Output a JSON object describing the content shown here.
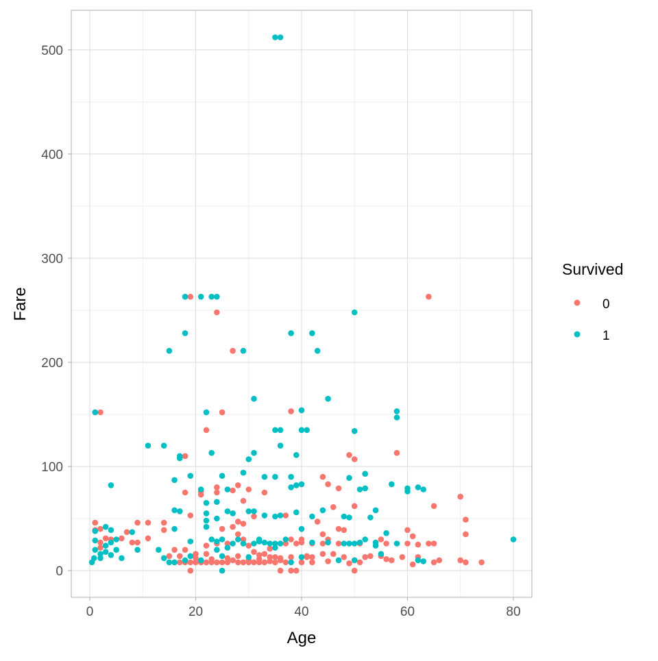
{
  "chart_data": {
    "type": "scatter",
    "title": "",
    "xlabel": "Age",
    "ylabel": "Fare",
    "xlim": [
      -3.5,
      83.5
    ],
    "ylim": [
      -25.6,
      538.0
    ],
    "xticks": [
      0,
      20,
      40,
      60,
      80
    ],
    "yticks": [
      0,
      100,
      200,
      300,
      400,
      500
    ],
    "grid": true,
    "legend": {
      "title": "Survived",
      "placement": "right",
      "entries": [
        "0",
        "1"
      ]
    },
    "colors": {
      "0": "#F8766D",
      "1": "#00BFC4"
    },
    "series": [
      {
        "name": "0",
        "color": "#F8766D",
        "points": [
          [
            19,
            263
          ],
          [
            64,
            263
          ],
          [
            24,
            248
          ],
          [
            27,
            211
          ],
          [
            2,
            152
          ],
          [
            25,
            152
          ],
          [
            38,
            153
          ],
          [
            22,
            135
          ],
          [
            18,
            110
          ],
          [
            58,
            113
          ],
          [
            49,
            111
          ],
          [
            50,
            107
          ],
          [
            44,
            90
          ],
          [
            45,
            83
          ],
          [
            47,
            79
          ],
          [
            18,
            75
          ],
          [
            24,
            75
          ],
          [
            24,
            80
          ],
          [
            28,
            82
          ],
          [
            21,
            76
          ],
          [
            27,
            77
          ],
          [
            30,
            78
          ],
          [
            29,
            67
          ],
          [
            50,
            62
          ],
          [
            65,
            62
          ],
          [
            70,
            71
          ],
          [
            71,
            49
          ],
          [
            71,
            35
          ],
          [
            70,
            10
          ],
          [
            71,
            8
          ],
          [
            74,
            8
          ],
          [
            66,
            10
          ],
          [
            65,
            8
          ],
          [
            61,
            6
          ],
          [
            62,
            13
          ],
          [
            60,
            39
          ],
          [
            61,
            33
          ],
          [
            59,
            13
          ],
          [
            57,
            10
          ],
          [
            56,
            11
          ],
          [
            55,
            30
          ],
          [
            54,
            27
          ],
          [
            53,
            14
          ],
          [
            50,
            10
          ],
          [
            50,
            0
          ],
          [
            48,
            39
          ],
          [
            47,
            26
          ],
          [
            46,
            61
          ],
          [
            45,
            30
          ],
          [
            44,
            26
          ],
          [
            43,
            47
          ],
          [
            42,
            8
          ],
          [
            41,
            13
          ],
          [
            40,
            27
          ],
          [
            40,
            8
          ],
          [
            39,
            0
          ],
          [
            38,
            0
          ],
          [
            37,
            8
          ],
          [
            36,
            0
          ],
          [
            35,
            8
          ],
          [
            34,
            13
          ],
          [
            33,
            8
          ],
          [
            32,
            8
          ],
          [
            31,
            8
          ],
          [
            30,
            8
          ],
          [
            29,
            8
          ],
          [
            28,
            8
          ],
          [
            27,
            10
          ],
          [
            26,
            8
          ],
          [
            25,
            8
          ],
          [
            24,
            8
          ],
          [
            23,
            8
          ],
          [
            22,
            8
          ],
          [
            21,
            8
          ],
          [
            20,
            8
          ],
          [
            19,
            0
          ],
          [
            19,
            8
          ],
          [
            18,
            8
          ],
          [
            17,
            8
          ],
          [
            16,
            8
          ],
          [
            15,
            14
          ],
          [
            14,
            39
          ],
          [
            14,
            46
          ],
          [
            11,
            46
          ],
          [
            11,
            31
          ],
          [
            9,
            46
          ],
          [
            9,
            27
          ],
          [
            8,
            27
          ],
          [
            7,
            37
          ],
          [
            6,
            31
          ],
          [
            4,
            30
          ],
          [
            3,
            31
          ],
          [
            2,
            27
          ],
          [
            2,
            22
          ],
          [
            1,
            46
          ],
          [
            1,
            39
          ],
          [
            2,
            40
          ],
          [
            19,
            53
          ],
          [
            21,
            73
          ],
          [
            16,
            20
          ],
          [
            20,
            16
          ],
          [
            22,
            16
          ],
          [
            24,
            26
          ],
          [
            26,
            26
          ],
          [
            28,
            35
          ],
          [
            28,
            47
          ],
          [
            29,
            30
          ],
          [
            30,
            24
          ],
          [
            31,
            18
          ],
          [
            32,
            15
          ],
          [
            33,
            16
          ],
          [
            34,
            21
          ],
          [
            35,
            13
          ],
          [
            36,
            10
          ],
          [
            37,
            26
          ],
          [
            38,
            30
          ],
          [
            39,
            26
          ],
          [
            40,
            30
          ],
          [
            41,
            14
          ],
          [
            42,
            26
          ],
          [
            44,
            16
          ],
          [
            46,
            16
          ],
          [
            47,
            40
          ],
          [
            49,
            7
          ],
          [
            51,
            26
          ],
          [
            52,
            13
          ],
          [
            55,
            14
          ],
          [
            56,
            26
          ],
          [
            60,
            26
          ],
          [
            62,
            25
          ],
          [
            64,
            26
          ],
          [
            65,
            26
          ],
          [
            25,
            40
          ],
          [
            27,
            42
          ],
          [
            29,
            45
          ],
          [
            31,
            52
          ],
          [
            33,
            75
          ],
          [
            37,
            53
          ],
          [
            44,
            35
          ],
          [
            23,
            11
          ],
          [
            26,
            12
          ],
          [
            28,
            14
          ],
          [
            30,
            10
          ],
          [
            32,
            11
          ],
          [
            34,
            9
          ],
          [
            36,
            12
          ],
          [
            38,
            13
          ],
          [
            42,
            13
          ],
          [
            45,
            9
          ],
          [
            48,
            13
          ],
          [
            51,
            8
          ],
          [
            20,
            12
          ],
          [
            22,
            24
          ],
          [
            18,
            20
          ],
          [
            17,
            14
          ]
        ]
      },
      {
        "name": "1",
        "color": "#00BFC4",
        "points": [
          [
            35,
            512
          ],
          [
            36,
            512
          ],
          [
            18,
            263
          ],
          [
            21,
            263
          ],
          [
            23,
            263
          ],
          [
            24,
            263
          ],
          [
            18,
            228
          ],
          [
            38,
            228
          ],
          [
            42,
            228
          ],
          [
            15,
            211
          ],
          [
            29,
            211
          ],
          [
            43,
            211
          ],
          [
            50,
            248
          ],
          [
            1,
            152
          ],
          [
            22,
            152
          ],
          [
            31,
            165
          ],
          [
            45,
            165
          ],
          [
            40,
            154
          ],
          [
            58,
            153
          ],
          [
            58,
            147
          ],
          [
            35,
            135
          ],
          [
            36,
            135
          ],
          [
            40,
            135
          ],
          [
            41,
            135
          ],
          [
            50,
            134
          ],
          [
            11,
            120
          ],
          [
            14,
            120
          ],
          [
            36,
            120
          ],
          [
            17,
            110
          ],
          [
            17,
            108
          ],
          [
            30,
            107
          ],
          [
            31,
            113
          ],
          [
            23,
            113
          ],
          [
            39,
            111
          ],
          [
            16,
            87
          ],
          [
            19,
            91
          ],
          [
            4,
            82
          ],
          [
            25,
            91
          ],
          [
            29,
            94
          ],
          [
            33,
            90
          ],
          [
            35,
            90
          ],
          [
            38,
            90
          ],
          [
            52,
            93
          ],
          [
            49,
            89
          ],
          [
            39,
            82
          ],
          [
            40,
            83
          ],
          [
            38,
            80
          ],
          [
            26,
            78
          ],
          [
            21,
            78
          ],
          [
            51,
            78
          ],
          [
            52,
            79
          ],
          [
            57,
            83
          ],
          [
            60,
            79
          ],
          [
            62,
            80
          ],
          [
            63,
            78
          ],
          [
            60,
            76
          ],
          [
            80,
            30
          ],
          [
            16,
            58
          ],
          [
            17,
            57
          ],
          [
            22,
            55
          ],
          [
            24,
            66
          ],
          [
            22,
            65
          ],
          [
            27,
            55
          ],
          [
            26,
            57
          ],
          [
            30,
            57
          ],
          [
            31,
            57
          ],
          [
            33,
            53
          ],
          [
            35,
            52
          ],
          [
            36,
            53
          ],
          [
            39,
            56
          ],
          [
            42,
            52
          ],
          [
            44,
            58
          ],
          [
            48,
            52
          ],
          [
            49,
            51
          ],
          [
            54,
            58
          ],
          [
            53,
            51
          ],
          [
            56,
            36
          ],
          [
            58,
            26
          ],
          [
            55,
            16
          ],
          [
            54,
            24
          ],
          [
            62,
            10
          ],
          [
            63,
            9
          ],
          [
            0.4,
            8
          ],
          [
            0.8,
            12
          ],
          [
            1,
            20
          ],
          [
            1,
            38
          ],
          [
            1,
            29
          ],
          [
            2,
            12
          ],
          [
            3,
            18
          ],
          [
            3,
            42
          ],
          [
            4,
            15
          ],
          [
            4,
            39
          ],
          [
            4,
            27
          ],
          [
            5,
            20
          ],
          [
            6,
            12
          ],
          [
            8,
            37
          ],
          [
            9,
            20
          ],
          [
            13,
            20
          ],
          [
            14,
            12
          ],
          [
            15,
            8
          ],
          [
            16,
            8
          ],
          [
            18,
            10
          ],
          [
            19,
            14
          ],
          [
            21,
            10
          ],
          [
            22,
            42
          ],
          [
            22,
            48
          ],
          [
            23,
            30
          ],
          [
            24,
            28
          ],
          [
            25,
            0
          ],
          [
            25,
            14
          ],
          [
            25,
            30
          ],
          [
            26,
            22
          ],
          [
            27,
            26
          ],
          [
            28,
            30
          ],
          [
            29,
            26
          ],
          [
            30,
            13
          ],
          [
            31,
            26
          ],
          [
            32,
            30
          ],
          [
            33,
            27
          ],
          [
            34,
            26
          ],
          [
            35,
            26
          ],
          [
            36,
            26
          ],
          [
            37,
            30
          ],
          [
            38,
            8
          ],
          [
            40,
            13
          ],
          [
            40,
            40
          ],
          [
            42,
            27
          ],
          [
            45,
            27
          ],
          [
            47,
            10
          ],
          [
            48,
            26
          ],
          [
            49,
            26
          ],
          [
            50,
            26
          ],
          [
            50,
            10
          ],
          [
            51,
            27
          ],
          [
            52,
            30
          ],
          [
            54,
            27
          ],
          [
            3,
            24
          ],
          [
            5,
            30
          ],
          [
            2,
            16
          ],
          [
            24,
            50
          ],
          [
            32,
            28
          ],
          [
            35,
            22
          ],
          [
            19,
            28
          ],
          [
            16,
            40
          ],
          [
            24,
            20
          ]
        ]
      }
    ]
  }
}
